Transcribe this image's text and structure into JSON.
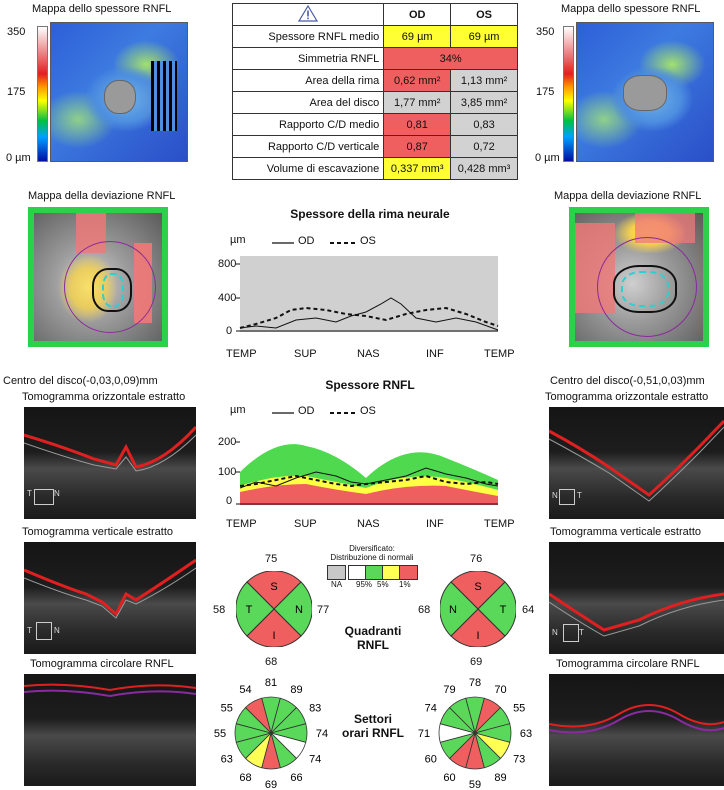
{
  "left": {
    "thickness_map_title": "Mappa dello spessore RNFL",
    "scale_top": "350",
    "scale_mid": "175",
    "scale_bottom": "0 µm",
    "deviation_title": "Mappa della deviazione RNFL",
    "disc_center": "Centro del disco(-0,03,0,09)mm",
    "tomo_h_title": "Tomogramma orizzontale estratto",
    "tomo_v_title": "Tomogramma verticale estratto",
    "tomo_c_title": "Tomogramma circolare RNFL",
    "tomo_h_marker_a": "T",
    "tomo_h_marker_b": "N",
    "tomo_v_marker_a": "T",
    "tomo_v_marker_b": "N"
  },
  "right": {
    "thickness_map_title": "Mappa dello spessore RNFL",
    "scale_top": "350",
    "scale_mid": "175",
    "scale_bottom": "0 µm",
    "deviation_title": "Mappa della deviazione RNFL",
    "disc_center": "Centro del disco(-0,51,0,03)mm",
    "tomo_h_title": "Tomogramma orizzontale estratto",
    "tomo_v_title": "Tomogramma verticale estratto",
    "tomo_c_title": "Tomogramma circolare RNFL",
    "tomo_h_marker_a": "N",
    "tomo_h_marker_b": "T",
    "tomo_v_marker_a": "N",
    "tomo_v_marker_b": "T"
  },
  "table": {
    "header_od": "OD",
    "header_os": "OS",
    "rows": [
      {
        "label": "Spessore RNFL medio",
        "od": "69 µm",
        "os": "69 µm",
        "od_color": "#ffff33",
        "os_color": "#ffff33"
      },
      {
        "label": "Simmetria RNFL",
        "merged": "34%",
        "merged_color": "#ef5f5f"
      },
      {
        "label": "Area della rima",
        "od": "0,62 mm²",
        "os": "1,13 mm²",
        "od_color": "#ef5f5f",
        "os_color": "#d2d2d2"
      },
      {
        "label": "Area del disco",
        "od": "1,77 mm²",
        "os": "3,85 mm²",
        "od_color": "#d2d2d2",
        "os_color": "#d2d2d2"
      },
      {
        "label": "Rapporto C/D medio",
        "od": "0,81",
        "os": "0,83",
        "od_color": "#ef5f5f",
        "os_color": "#d2d2d2"
      },
      {
        "label": "Rapporto C/D verticale",
        "od": "0,87",
        "os": "0,72",
        "od_color": "#ef5f5f",
        "os_color": "#d2d2d2"
      },
      {
        "label": "Volume di escavazione",
        "od": "0,337 mm³",
        "os": "0,428 mm³",
        "od_color": "#ffff33",
        "os_color": "#d2d2d2"
      }
    ]
  },
  "rim_chart": {
    "title": "Spessore della rima neurale",
    "unit": "µm",
    "legend_od": "OD",
    "legend_os": "OS",
    "yticks": [
      "800",
      "400",
      "0"
    ],
    "xticks": [
      "TEMP",
      "SUP",
      "NAS",
      "INF",
      "TEMP"
    ]
  },
  "rnfl_chart": {
    "title": "Spessore RNFL",
    "unit": "µm",
    "legend_od": "OD",
    "legend_os": "OS",
    "yticks": [
      "200",
      "100",
      "0"
    ],
    "xticks": [
      "TEMP",
      "SUP",
      "NAS",
      "INF",
      "TEMP"
    ]
  },
  "distribution_legend": {
    "title_line1": "Diversificato:",
    "title_line2": "Distribuzione di normali",
    "labels": [
      "NA",
      "95%",
      "5%",
      "1%"
    ],
    "colors": [
      "#c8c8c8",
      "#ffffff",
      "#5ad85a",
      "#ffff55",
      "#ef5f5f"
    ]
  },
  "quadrants": {
    "label_line1": "Quadranti",
    "label_line2": "RNFL",
    "od": {
      "top": "75",
      "left": "58",
      "right": "77",
      "bottom": "68",
      "s": "S",
      "t": "T",
      "n": "N",
      "i": "I"
    },
    "os": {
      "top": "76",
      "left": "68",
      "right": "64",
      "bottom": "69",
      "s": "S",
      "t": "T",
      "n": "N",
      "i": "I"
    }
  },
  "clock": {
    "label_line1": "Settori",
    "label_line2": "orari RNFL",
    "od_values": [
      "81",
      "89",
      "83",
      "74",
      "74",
      "66",
      "69",
      "68",
      "63",
      "55",
      "55",
      "54"
    ],
    "os_values": [
      "78",
      "70",
      "55",
      "63",
      "73",
      "89",
      "59",
      "60",
      "60",
      "71",
      "74",
      "79"
    ],
    "od_colors": [
      "#5ad85a",
      "#5ad85a",
      "#5ad85a",
      "#5ad85a",
      "#ffffff",
      "#5ad85a",
      "#ef5f5f",
      "#ffff55",
      "#5ad85a",
      "#5ad85a",
      "#5ad85a",
      "#ef5f5f"
    ],
    "os_colors": [
      "#5ad85a",
      "#ef5f5f",
      "#5ad85a",
      "#5ad85a",
      "#ffff55",
      "#5ad85a",
      "#ef5f5f",
      "#ef5f5f",
      "#5ad85a",
      "#ffffff",
      "#5ad85a",
      "#5ad85a"
    ]
  }
}
